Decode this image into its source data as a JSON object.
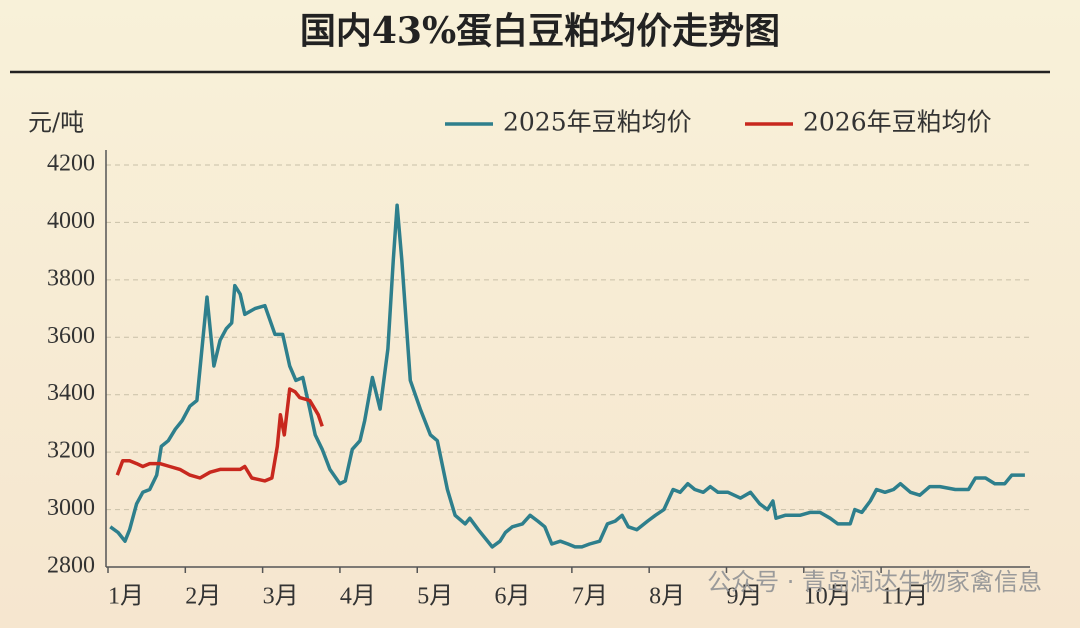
{
  "chart_data": {
    "type": "line",
    "title": "国内43%蛋白豆粕均价走势图",
    "y_label": "元/吨",
    "xlim": [
      0,
      11.9
    ],
    "ylim": [
      2800,
      4200
    ],
    "yticks": [
      2800,
      3000,
      3200,
      3400,
      3600,
      3800,
      4000,
      4200
    ],
    "xticks": [
      {
        "value": 0,
        "label": "1月"
      },
      {
        "value": 1,
        "label": "2月"
      },
      {
        "value": 2,
        "label": "3月"
      },
      {
        "value": 3,
        "label": "4月"
      },
      {
        "value": 4,
        "label": "5月"
      },
      {
        "value": 5,
        "label": "6月"
      },
      {
        "value": 6,
        "label": "7月"
      },
      {
        "value": 7,
        "label": "8月"
      },
      {
        "value": 8,
        "label": "9月"
      },
      {
        "value": 9,
        "label": "10月"
      },
      {
        "value": 10,
        "label": "11月"
      }
    ],
    "grid": true,
    "legend": "top-right",
    "series": [
      {
        "name": "2025年豆粕均价",
        "color": "#2e7f8c",
        "x": [
          0.03,
          0.13,
          0.22,
          0.28,
          0.37,
          0.45,
          0.54,
          0.63,
          0.69,
          0.78,
          0.87,
          0.96,
          1.06,
          1.15,
          1.28,
          1.37,
          1.45,
          1.53,
          1.6,
          1.64,
          1.71,
          1.77,
          1.9,
          2.03,
          2.16,
          2.26,
          2.35,
          2.43,
          2.52,
          2.61,
          2.68,
          2.77,
          2.87,
          3.0,
          3.07,
          3.16,
          3.26,
          3.32,
          3.42,
          3.52,
          3.62,
          3.69,
          3.74,
          3.8,
          3.91,
          4.04,
          4.17,
          4.26,
          4.39,
          4.49,
          4.62,
          4.68,
          4.79,
          4.97,
          5.07,
          5.14,
          5.23,
          5.36,
          5.46,
          5.56,
          5.65,
          5.74,
          5.85,
          5.95,
          6.04,
          6.13,
          6.23,
          6.36,
          6.46,
          6.56,
          6.65,
          6.73,
          6.84,
          6.98,
          7.08,
          7.19,
          7.31,
          7.4,
          7.5,
          7.59,
          7.7,
          7.79,
          7.89,
          8.02,
          8.18,
          8.31,
          8.43,
          8.53,
          8.6,
          8.64,
          8.76,
          8.95,
          9.08,
          9.21,
          9.34,
          9.44,
          9.6,
          9.66,
          9.75,
          9.86,
          9.94,
          10.05,
          10.16,
          10.25,
          10.38,
          10.5,
          10.63,
          10.76,
          10.96,
          11.13,
          11.22,
          11.35,
          11.47,
          11.6,
          11.69,
          11.8,
          11.86
        ],
        "values": [
          2940,
          2920,
          2890,
          2930,
          3020,
          3060,
          3070,
          3120,
          3220,
          3240,
          3280,
          3310,
          3360,
          3380,
          3740,
          3500,
          3590,
          3630,
          3650,
          3780,
          3750,
          3680,
          3700,
          3710,
          3610,
          3610,
          3500,
          3450,
          3460,
          3350,
          3260,
          3210,
          3140,
          3090,
          3100,
          3210,
          3240,
          3310,
          3460,
          3350,
          3560,
          3870,
          4060,
          3870,
          3450,
          3350,
          3260,
          3240,
          3070,
          2980,
          2950,
          2970,
          2930,
          2870,
          2890,
          2920,
          2940,
          2950,
          2980,
          2960,
          2940,
          2880,
          2890,
          2880,
          2870,
          2870,
          2880,
          2890,
          2950,
          2960,
          2980,
          2940,
          2930,
          2960,
          2980,
          3000,
          3070,
          3060,
          3090,
          3070,
          3060,
          3080,
          3060,
          3060,
          3040,
          3060,
          3020,
          3000,
          3030,
          2970,
          2980,
          2980,
          2990,
          2990,
          2970,
          2950,
          2950,
          3000,
          2990,
          3030,
          3070,
          3060,
          3070,
          3090,
          3060,
          3050,
          3080,
          3080,
          3070,
          3070,
          3110,
          3110,
          3090,
          3090,
          3120,
          3120,
          3120
        ]
      },
      {
        "name": "2026年豆粕均价",
        "color": "#c8281e",
        "x": [
          0.12,
          0.19,
          0.28,
          0.37,
          0.45,
          0.54,
          0.67,
          0.8,
          0.93,
          1.06,
          1.19,
          1.32,
          1.45,
          1.71,
          1.77,
          1.86,
          2.03,
          2.12,
          2.19,
          2.23,
          2.28,
          2.35,
          2.42,
          2.48,
          2.61,
          2.72,
          2.77
        ],
        "values": [
          3120,
          3170,
          3170,
          3160,
          3150,
          3160,
          3160,
          3150,
          3140,
          3120,
          3110,
          3130,
          3140,
          3140,
          3150,
          3110,
          3100,
          3110,
          3220,
          3330,
          3260,
          3420,
          3410,
          3390,
          3380,
          3330,
          3290
        ]
      }
    ]
  },
  "watermark": "公众号 · 青岛润达生物家禽信息"
}
